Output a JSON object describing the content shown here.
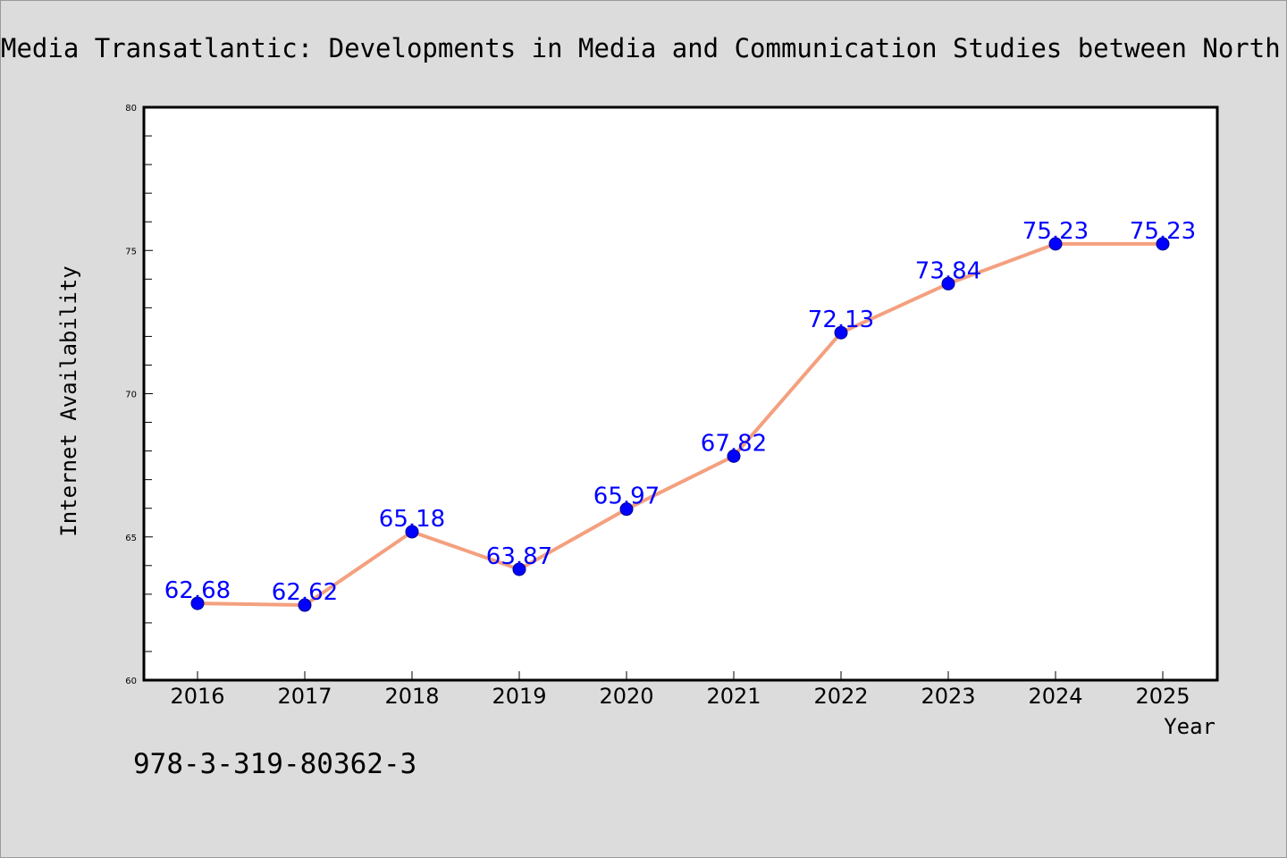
{
  "title": "Media Transatlantic: Developments in Media and Communication Studies between North American and German-speaking Europe",
  "footnote": "978-3-319-80362-3",
  "colors": {
    "background": "#dcdcdc",
    "plot_area": "#ffffff",
    "line": "#f4a07e",
    "marker": "#0000ff",
    "data_label": "#0000ff"
  },
  "chart_data": {
    "type": "line",
    "title": "Media Transatlantic: Developments in Media and Communication Studies between North American and German-speaking Europe",
    "xlabel": "Year",
    "ylabel": "Internet Availability",
    "categories": [
      "2016",
      "2017",
      "2018",
      "2019",
      "2020",
      "2021",
      "2022",
      "2023",
      "2024",
      "2025"
    ],
    "series": [
      {
        "values": [
          62.68,
          62.62,
          65.18,
          63.87,
          65.97,
          67.82,
          72.13,
          73.84,
          75.23,
          75.23
        ],
        "labels": [
          "62.68",
          "62.62",
          "65.18",
          "63.87",
          "65.97",
          "67.82",
          "72.13",
          "73.84",
          "75.23",
          "75.23"
        ]
      }
    ],
    "ylim": [
      60,
      80
    ],
    "yticks": [
      60,
      65,
      70,
      75,
      80
    ],
    "grid": false,
    "legend": "none"
  }
}
